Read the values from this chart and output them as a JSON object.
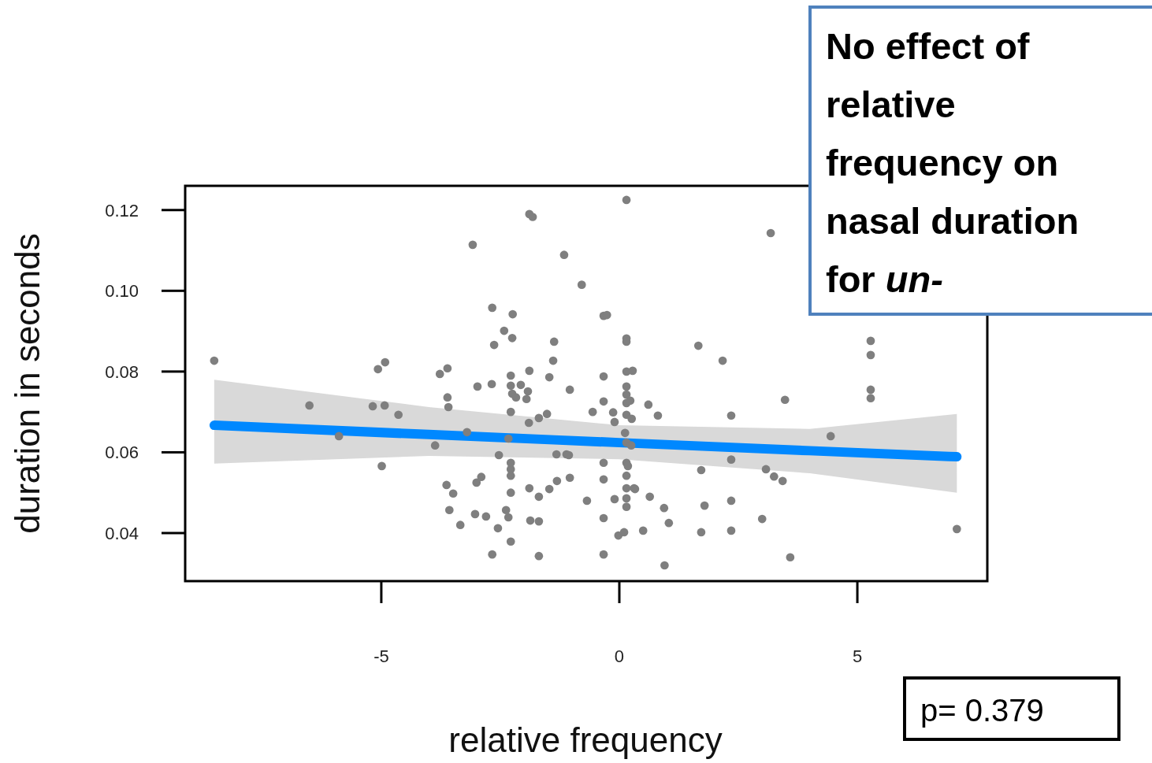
{
  "chart_data": {
    "type": "scatter",
    "xlabel": "relative frequency",
    "ylabel": "duration in seconds",
    "annotations": [
      "No effect of relative frequency on nasal duration for un-",
      "p= 0.379"
    ],
    "xlim": [
      -9.12,
      7.73
    ],
    "ylim": [
      0.0281,
      0.126
    ],
    "xticks": [
      -5,
      0,
      5
    ],
    "yticks": [
      {
        "value": 0.04,
        "label": "0.04"
      },
      {
        "value": 0.06,
        "label": "0.06"
      },
      {
        "value": 0.08,
        "label": "0.08"
      },
      {
        "value": 0.1,
        "label": "0.10"
      },
      {
        "value": 0.12,
        "label": "0.12"
      }
    ],
    "grid": false,
    "marker": "circle",
    "series": [
      {
        "color": "#7f7f7f",
        "x": [
          -8.51,
          -6.51,
          -5.89,
          -4.99,
          -5.18,
          -4.93,
          -5.07,
          -4.92,
          -4.64,
          -3.87,
          -3.77,
          -3.61,
          -3.61,
          -3.59,
          -3.63,
          -3.49,
          -3.57,
          -3.34,
          -3.08,
          -2.98,
          -3.2,
          -3.0,
          -2.9,
          -3.03,
          -2.8,
          -2.67,
          -2.63,
          -2.68,
          -2.42,
          -2.24,
          -2.25,
          -2.53,
          -2.55,
          -2.67,
          -2.38,
          -2.33,
          -2.28,
          -2.28,
          -2.28,
          -2.28,
          -2.28,
          -2.33,
          -2.28,
          -2.25,
          -2.28,
          -2.28,
          -2.17,
          -2.07,
          -1.89,
          -1.82,
          -1.89,
          -1.92,
          -1.95,
          -1.9,
          -1.69,
          -1.89,
          -1.69,
          -1.87,
          -1.69,
          -1.69,
          -1.52,
          -1.47,
          -1.39,
          -1.37,
          -1.47,
          -1.31,
          -1.32,
          -1.16,
          -1.04,
          -1.11,
          -1.06,
          -1.04,
          -0.79,
          -0.68,
          -0.56,
          -0.33,
          -0.26,
          -0.33,
          -0.33,
          -0.33,
          -0.33,
          -0.33,
          -0.33,
          -0.13,
          -0.1,
          -0.1,
          -0.02,
          0.1,
          0.15,
          0.15,
          0.15,
          0.15,
          0.28,
          0.15,
          0.15,
          0.15,
          0.23,
          0.15,
          0.26,
          0.12,
          0.15,
          0.25,
          0.15,
          0.18,
          0.15,
          0.15,
          0.15,
          0.31,
          0.15,
          0.33,
          0.61,
          0.81,
          0.64,
          0.5,
          0.94,
          1.04,
          0.95,
          1.66,
          1.72,
          1.79,
          1.72,
          2.17,
          2.35,
          2.35,
          2.35,
          2.35,
          3.0,
          3.08,
          3.18,
          3.25,
          3.43,
          3.48,
          3.59,
          4.44,
          5.28,
          5.28,
          5.28,
          5.28,
          7.09
        ],
        "values": [
          0.0827,
          0.0716,
          0.064,
          0.0566,
          0.0714,
          0.0716,
          0.0806,
          0.0823,
          0.0693,
          0.0617,
          0.0794,
          0.0808,
          0.0736,
          0.0712,
          0.0519,
          0.0498,
          0.0457,
          0.042,
          0.1114,
          0.0763,
          0.065,
          0.0525,
          0.0539,
          0.0447,
          0.0441,
          0.0958,
          0.0866,
          0.0769,
          0.0901,
          0.0942,
          0.0883,
          0.0593,
          0.0412,
          0.0347,
          0.0457,
          0.0439,
          0.0379,
          0.05,
          0.0558,
          0.0542,
          0.0574,
          0.0634,
          0.07,
          0.0745,
          0.0765,
          0.079,
          0.0736,
          0.0767,
          0.119,
          0.1183,
          0.0802,
          0.0751,
          0.0732,
          0.0673,
          0.0685,
          0.0511,
          0.049,
          0.0431,
          0.0429,
          0.0343,
          0.0695,
          0.0786,
          0.0827,
          0.0874,
          0.0509,
          0.0529,
          0.0595,
          0.1089,
          0.0755,
          0.0595,
          0.0593,
          0.0537,
          0.1015,
          0.048,
          0.07,
          0.0938,
          0.094,
          0.0788,
          0.0726,
          0.0574,
          0.0533,
          0.0437,
          0.0347,
          0.0699,
          0.0675,
          0.0484,
          0.0394,
          0.0402,
          0.1225,
          0.0882,
          0.0874,
          0.08,
          0.0802,
          0.0763,
          0.0743,
          0.0722,
          0.0728,
          0.0693,
          0.0683,
          0.0648,
          0.0624,
          0.0617,
          0.0574,
          0.0566,
          0.0542,
          0.0511,
          0.0486,
          0.0511,
          0.0465,
          0.0509,
          0.0718,
          0.0691,
          0.049,
          0.0406,
          0.0462,
          0.0425,
          0.032,
          0.0864,
          0.0556,
          0.0468,
          0.0402,
          0.0827,
          0.0691,
          0.0582,
          0.048,
          0.0406,
          0.0435,
          0.0558,
          0.1143,
          0.054,
          0.0529,
          0.073,
          0.034,
          0.064,
          0.0876,
          0.0841,
          0.0755,
          0.0734,
          0.041
        ]
      },
      {
        "type": "line",
        "color": "#0088ff",
        "marker": "none",
        "x": [
          -8.51,
          -4,
          0,
          4,
          7.09
        ],
        "values": [
          0.0667,
          0.0644,
          0.0624,
          0.0604,
          0.0589
        ],
        "lower": [
          0.0572,
          0.0591,
          0.0583,
          0.0548,
          0.05
        ],
        "upper": [
          0.078,
          0.0712,
          0.0667,
          0.0658,
          0.0695
        ]
      }
    ]
  }
}
